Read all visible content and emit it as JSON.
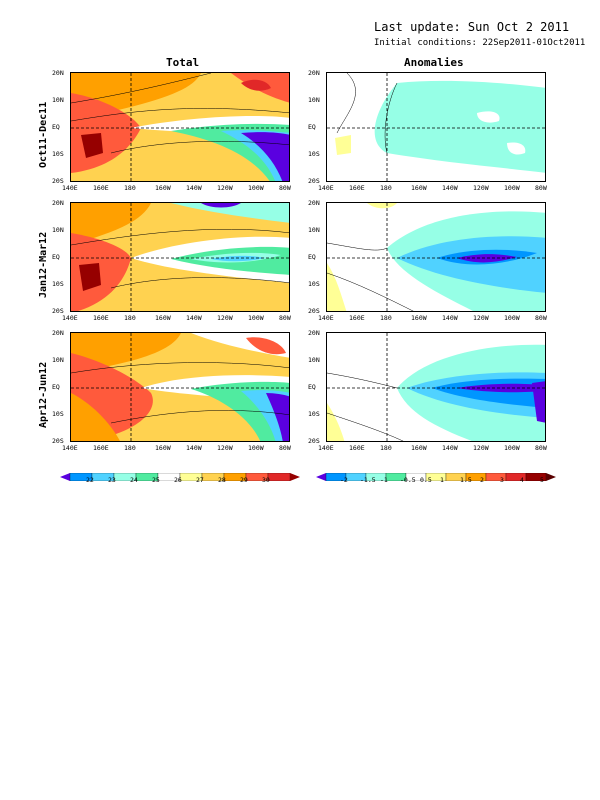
{
  "header": {
    "last_update": "Last update: Sun Oct 2 2011",
    "initial_conditions": "Initial conditions: 22Sep2011-01Oct2011"
  },
  "columns": {
    "total": "Total",
    "anomalies": "Anomalies"
  },
  "rows": [
    {
      "label": "Oct11-Dec11"
    },
    {
      "label": "Jan12-Mar12"
    },
    {
      "label": "Apr12-Jun12"
    }
  ],
  "axes": {
    "lat_labels": [
      "20N",
      "10N",
      "EQ",
      "10S",
      "20S"
    ],
    "lon_labels": [
      "140E",
      "160E",
      "180",
      "160W",
      "140W",
      "120W",
      "100W",
      "80W"
    ]
  },
  "colorbars": {
    "total": {
      "labels": [
        "22",
        "23",
        "24",
        "25",
        "26",
        "27",
        "28",
        "29",
        "30"
      ],
      "colors": [
        "#5a00e0",
        "#0096ff",
        "#50d2ff",
        "#96ffe6",
        "#50eba0",
        "#ffffff",
        "#ffff96",
        "#ffd250",
        "#ffa000",
        "#ff5a3c",
        "#e12828",
        "#960000"
      ]
    },
    "anomalies": {
      "labels": [
        "-2",
        "-1.5",
        "-1",
        "-0.5",
        "0.5",
        "1",
        "1.5",
        "2",
        "3",
        "4",
        "5"
      ],
      "colors": [
        "#5a00e0",
        "#0096ff",
        "#50d2ff",
        "#96ffe6",
        "#50eba0",
        "#ffffff",
        "#ffff96",
        "#ffd250",
        "#ffa000",
        "#ff5a3c",
        "#e12828",
        "#960000",
        "#5a0000"
      ]
    }
  }
}
